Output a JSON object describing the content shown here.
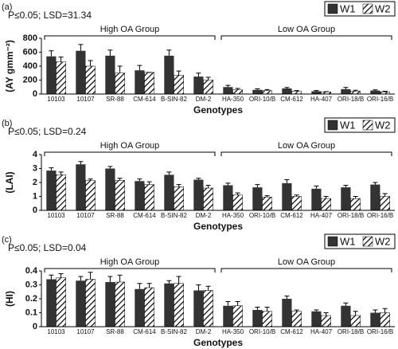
{
  "chart_data": [
    {
      "type": "bar",
      "panel_label": "(a)",
      "annotation": "P≤0.05; LSD=31.34",
      "y_label": "(AY gmm⁻²)",
      "x_label": "Genotypes",
      "groups": [
        "High OA Group",
        "Low OA Group"
      ],
      "categories": [
        "10103",
        "10107",
        "SR-88",
        "CM-614",
        "B-SIN-82",
        "DM-2",
        "HA-350",
        "ORI-10/B",
        "CM-612",
        "HA-407",
        "ORI-18/B",
        "ORI-16/B"
      ],
      "ylim": [
        0,
        800
      ],
      "yticks": [
        0,
        200,
        400,
        600,
        800
      ],
      "legend": "top-right",
      "series": [
        {
          "name": "W1",
          "color": "#333333",
          "values": [
            540,
            620,
            550,
            340,
            550,
            250,
            100,
            60,
            80,
            40,
            70,
            50
          ],
          "errors": [
            80,
            90,
            80,
            70,
            80,
            50,
            25,
            15,
            15,
            10,
            25,
            10
          ]
        },
        {
          "name": "W2",
          "color": "#000000",
          "pattern": "hatch",
          "values": [
            460,
            400,
            300,
            310,
            270,
            200,
            60,
            50,
            40,
            30,
            40,
            30
          ],
          "errors": [
            70,
            80,
            100,
            0,
            60,
            40,
            20,
            15,
            10,
            5,
            15,
            10
          ]
        }
      ]
    },
    {
      "type": "bar",
      "panel_label": "(b)",
      "annotation": "P≤0.05; LSD=0.24",
      "y_label": "(LAI)",
      "x_label": "Genotypes",
      "groups": [
        "High OA Group",
        "Low OA Group"
      ],
      "categories": [
        "10103",
        "10107",
        "SR-88",
        "CM-614",
        "B-SIN-82",
        "DM-2",
        "HA-350",
        "ORI-10/B",
        "CM-612",
        "HA-407",
        "ORI-18/B",
        "ORI-16/B"
      ],
      "ylim": [
        0,
        4
      ],
      "yticks": [
        0,
        1,
        2,
        3,
        4
      ],
      "legend": "top-right",
      "series": [
        {
          "name": "W1",
          "color": "#333333",
          "values": [
            2.85,
            3.3,
            3.0,
            2.1,
            2.55,
            2.2,
            1.8,
            1.65,
            1.95,
            1.55,
            1.65,
            1.85
          ],
          "errors": [
            0.2,
            0.2,
            0.15,
            0.15,
            0.2,
            0.1,
            0.15,
            0.2,
            0.25,
            0.2,
            0.15,
            0.15
          ]
        },
        {
          "name": "W2",
          "color": "#000000",
          "pattern": "hatch",
          "values": [
            2.55,
            2.15,
            2.15,
            1.85,
            1.7,
            1.6,
            1.1,
            0.95,
            1.0,
            0.85,
            0.85,
            1.0
          ],
          "errors": [
            0.2,
            0.1,
            0.15,
            0.2,
            0.15,
            0.2,
            0.15,
            0.1,
            0.1,
            0.15,
            0.15,
            0.2
          ]
        }
      ]
    },
    {
      "type": "bar",
      "panel_label": "(c)",
      "annotation": "P≤0.05; LSD=0.04",
      "y_label": "(HI)",
      "x_label": "Genotypes",
      "groups": [
        "High OA Group",
        "Low OA Group"
      ],
      "categories": [
        "10103",
        "10107",
        "SR-88",
        "CM-614",
        "B-SIN-82",
        "DM-2",
        "HA-350",
        "ORI-10/B",
        "CM-612",
        "HA-407",
        "ORI-18/B",
        "ORI-16/B"
      ],
      "ylim": [
        0,
        0.4
      ],
      "yticks": [
        0,
        0.1,
        0.2,
        0.3,
        0.4
      ],
      "legend": "top-right",
      "series": [
        {
          "name": "W1",
          "color": "#333333",
          "values": [
            0.34,
            0.33,
            0.32,
            0.27,
            0.31,
            0.26,
            0.15,
            0.12,
            0.2,
            0.11,
            0.15,
            0.1
          ],
          "errors": [
            0.03,
            0.03,
            0.04,
            0.04,
            0.02,
            0.04,
            0.03,
            0.02,
            0.02,
            0.01,
            0.02,
            0.02
          ]
        },
        {
          "name": "W2",
          "color": "#000000",
          "pattern": "hatch",
          "values": [
            0.35,
            0.34,
            0.32,
            0.28,
            0.31,
            0.26,
            0.15,
            0.11,
            0.11,
            0.08,
            0.08,
            0.1
          ],
          "errors": [
            0.03,
            0.05,
            0.05,
            0.03,
            0.05,
            0.03,
            0.03,
            0.03,
            0.01,
            0.02,
            0.03,
            0.03
          ]
        }
      ]
    }
  ]
}
